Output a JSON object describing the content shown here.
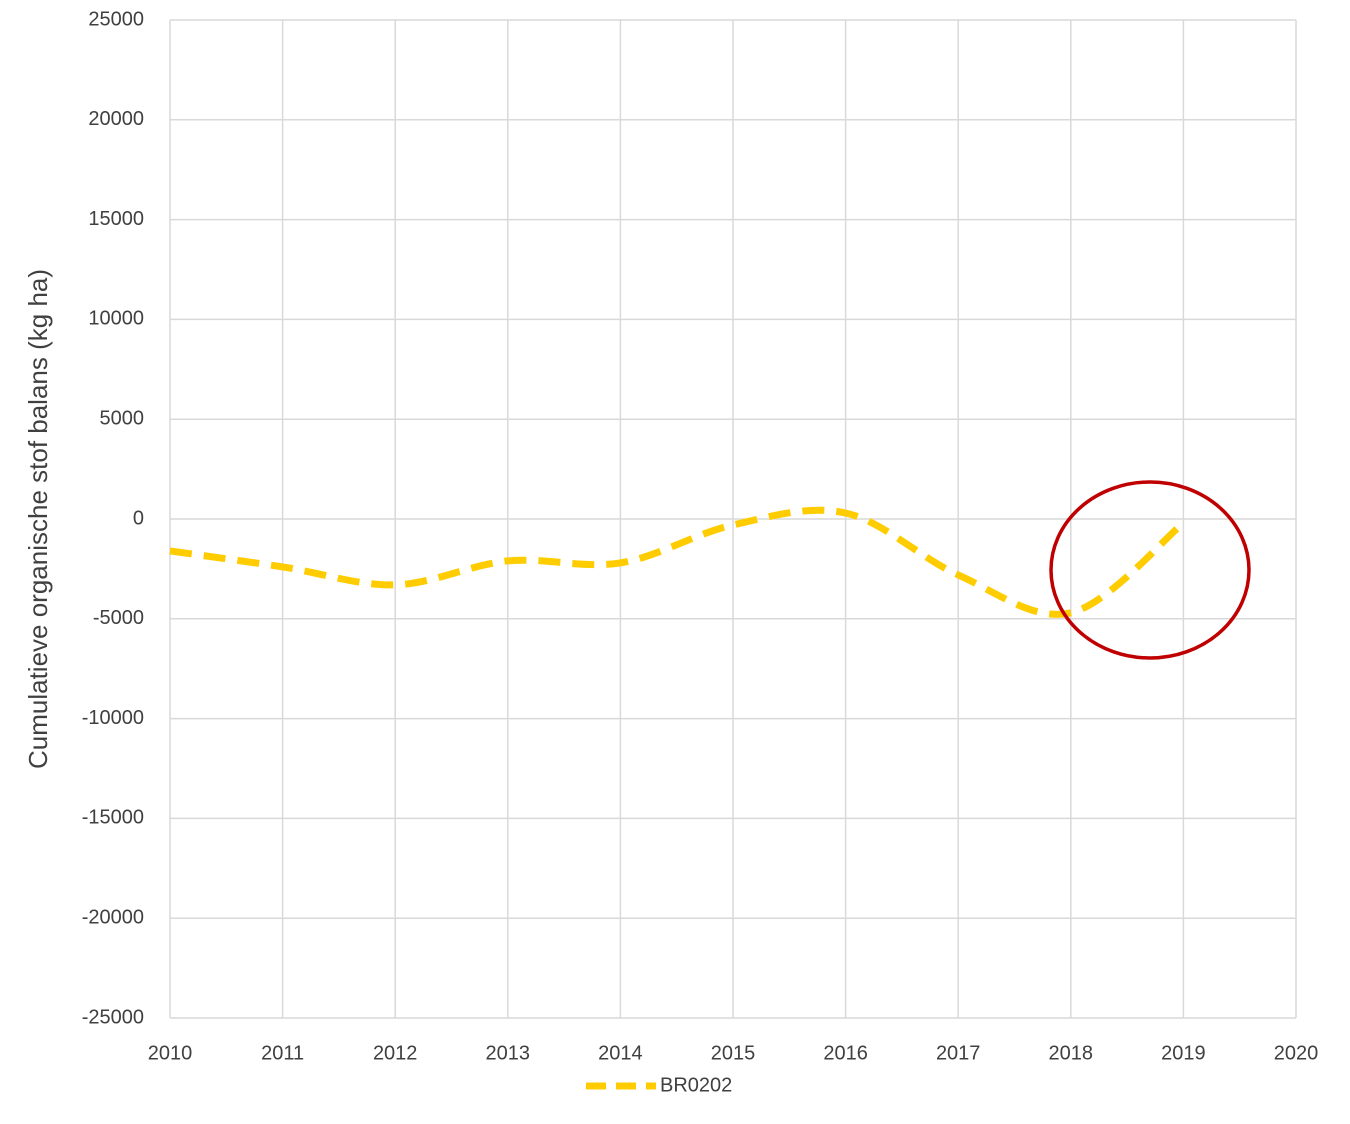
{
  "chart_data": {
    "type": "line",
    "y_label": "Cumulatieve organische stof balans (kg ha)",
    "x": [
      2010,
      2011,
      2012,
      2013,
      2014,
      2015,
      2016,
      2017,
      2018,
      2019
    ],
    "series": [
      {
        "name": "BR0202",
        "color": "#ffcc00",
        "values": [
          -1600,
          -2400,
          -3300,
          -2100,
          -2200,
          -300,
          300,
          -2800,
          -4700,
          -200
        ]
      }
    ],
    "xlim": [
      2010,
      2020
    ],
    "xticks": [
      2010,
      2011,
      2012,
      2013,
      2014,
      2015,
      2016,
      2017,
      2018,
      2019,
      2020
    ],
    "ylim": [
      -25000,
      25000
    ],
    "yticks": [
      -25000,
      -20000,
      -15000,
      -10000,
      -5000,
      0,
      5000,
      10000,
      15000,
      20000,
      25000
    ],
    "grid": true,
    "smooth": true,
    "dashed": true,
    "legend": "bottom"
  }
}
